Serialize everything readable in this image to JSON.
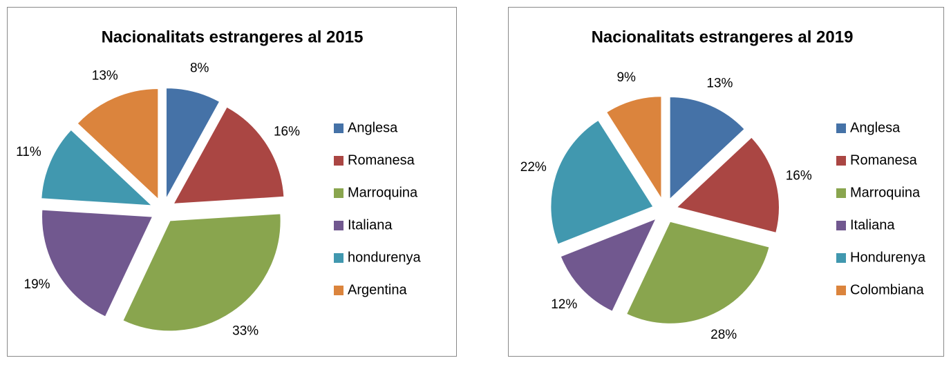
{
  "chart_data": [
    {
      "type": "pie",
      "title": "Nacionalitats estrangeres al 2015",
      "categories": [
        "Anglesa",
        "Romanesa",
        "Marroquina",
        "Italiana",
        "hondurenya",
        "Argentina"
      ],
      "values": [
        8,
        16,
        33,
        19,
        11,
        13
      ],
      "value_labels": [
        "8%",
        "16%",
        "33%",
        "19%",
        "11%",
        "13%"
      ],
      "colors": [
        "#4572a7",
        "#aa4643",
        "#89a54e",
        "#71588f",
        "#4198af",
        "#db843d"
      ],
      "legend": "right"
    },
    {
      "type": "pie",
      "title": "Nacionalitats estrangeres al 2019",
      "categories": [
        "Anglesa",
        "Romanesa",
        "Marroquina",
        "Italiana",
        "Hondurenya",
        "Colombiana"
      ],
      "values": [
        13,
        16,
        28,
        12,
        22,
        9
      ],
      "value_labels": [
        "13%",
        "16%",
        "28%",
        "12%",
        "22%",
        "9%"
      ],
      "colors": [
        "#4572a7",
        "#aa4643",
        "#89a54e",
        "#71588f",
        "#4198af",
        "#db843d"
      ],
      "legend": "right"
    }
  ]
}
